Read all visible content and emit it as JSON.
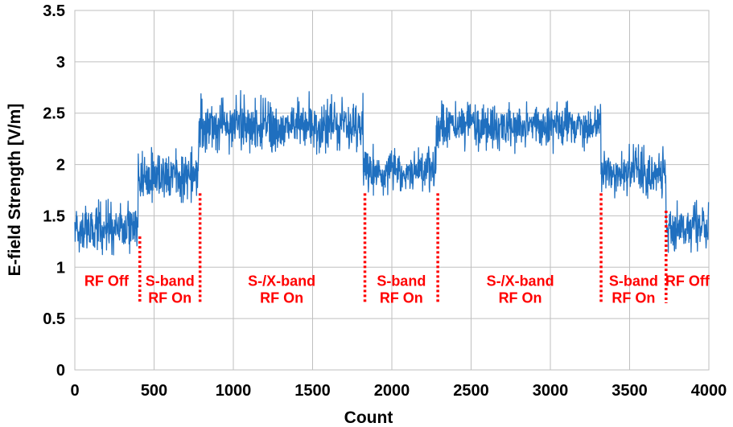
{
  "chart_data": {
    "type": "line",
    "title": "",
    "xlabel": "Count",
    "ylabel": "E-field Strength [V/m]",
    "xlim": [
      0,
      4000
    ],
    "ylim": [
      0,
      3.5
    ],
    "x_ticks": [
      "0",
      "500",
      "1000",
      "1500",
      "2000",
      "2500",
      "3000",
      "3500",
      "4000"
    ],
    "y_ticks": [
      "0",
      "0.5",
      "1",
      "1.5",
      "2",
      "2.5",
      "3",
      "3.5"
    ],
    "grid": true,
    "legend": "none",
    "series_color": "#1f6fbf",
    "annotation_color": "#ff0000",
    "series": [
      {
        "segments": [
          {
            "x_start": 0,
            "x_end": 400,
            "mean": 1.38,
            "min": 1.12,
            "max": 1.72
          },
          {
            "x_start": 400,
            "x_end": 780,
            "mean": 1.88,
            "min": 1.63,
            "max": 2.18
          },
          {
            "x_start": 780,
            "x_end": 1820,
            "mean": 2.38,
            "min": 2.1,
            "max": 2.72
          },
          {
            "x_start": 1820,
            "x_end": 2280,
            "mean": 1.93,
            "min": 1.7,
            "max": 2.2
          },
          {
            "x_start": 2280,
            "x_end": 3320,
            "mean": 2.38,
            "min": 2.1,
            "max": 2.62
          },
          {
            "x_start": 3320,
            "x_end": 3730,
            "mean": 1.92,
            "min": 1.67,
            "max": 2.2
          },
          {
            "x_start": 3730,
            "x_end": 4000,
            "mean": 1.38,
            "min": 1.12,
            "max": 1.65
          }
        ]
      }
    ],
    "dividers": [
      {
        "x": 410,
        "y_top": 1.3
      },
      {
        "x": 790,
        "y_top": 1.72
      },
      {
        "x": 1830,
        "y_top": 1.72
      },
      {
        "x": 2290,
        "y_top": 1.72
      },
      {
        "x": 3320,
        "y_top": 1.72
      },
      {
        "x": 3730,
        "y_top": 1.55
      }
    ],
    "annotations": [
      {
        "x": 200,
        "lines": [
          "RF Off"
        ]
      },
      {
        "x": 600,
        "lines": [
          "S-band",
          "RF On"
        ]
      },
      {
        "x": 1305,
        "lines": [
          "S-/X-band",
          "RF On"
        ]
      },
      {
        "x": 2060,
        "lines": [
          "S-band",
          "RF On"
        ]
      },
      {
        "x": 2810,
        "lines": [
          "S-/X-band",
          "RF On"
        ]
      },
      {
        "x": 3525,
        "lines": [
          "S-band",
          "RF On"
        ]
      },
      {
        "x": 3865,
        "lines": [
          "RF Off"
        ]
      }
    ]
  }
}
